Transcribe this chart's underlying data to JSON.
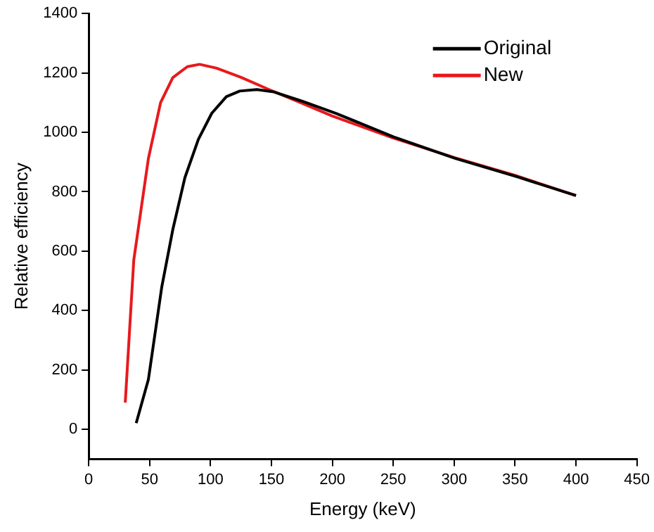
{
  "chart_data": {
    "type": "line",
    "xlabel": "Energy (keV)",
    "ylabel": "Relative efficiency",
    "xlim": [
      0,
      450
    ],
    "xticks": [
      0,
      50,
      100,
      150,
      200,
      250,
      300,
      350,
      400,
      450
    ],
    "ylim": [
      -100,
      1400
    ],
    "yticks": [
      0,
      200,
      400,
      600,
      800,
      1000,
      1200,
      1400
    ],
    "grid": false,
    "legend": "top right",
    "marker": "none",
    "line_style": "solid",
    "series": [
      {
        "name": "Original",
        "color": "#000000",
        "x": [
          39,
          49,
          60,
          69,
          79,
          90,
          101,
          113,
          124,
          138,
          152,
          175,
          203,
          250,
          301,
          352,
          400
        ],
        "values": [
          21,
          168,
          480,
          672,
          848,
          976,
          1064,
          1120,
          1139,
          1144,
          1136,
          1105,
          1064,
          985,
          912,
          850,
          787
        ]
      },
      {
        "name": "New",
        "color": "#e8191c",
        "x": [
          30,
          37,
          49,
          59,
          69,
          81,
          91,
          105,
          125,
          148,
          175,
          200,
          250,
          300,
          350,
          400
        ],
        "values": [
          90,
          570,
          912,
          1100,
          1184,
          1221,
          1229,
          1216,
          1185,
          1144,
          1098,
          1055,
          981,
          915,
          855,
          787
        ]
      }
    ]
  }
}
